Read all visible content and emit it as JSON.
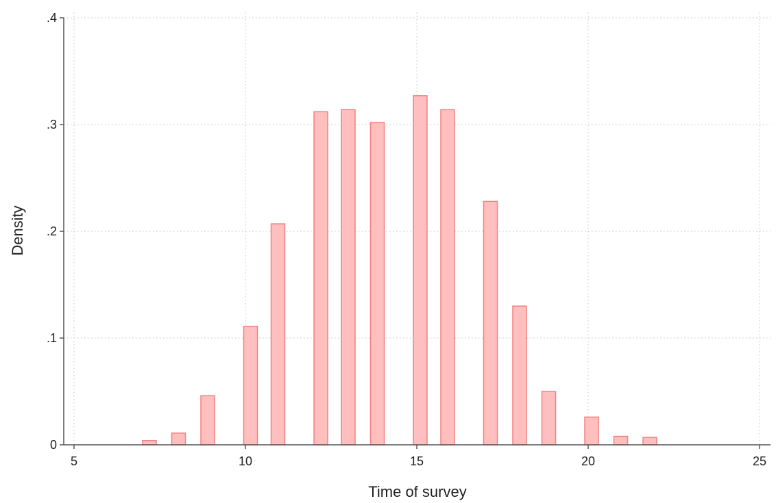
{
  "chart_data": {
    "type": "bar",
    "title": "",
    "xlabel": "Time of survey",
    "ylabel": "Density",
    "xlim": [
      5,
      25
    ],
    "ylim": [
      0,
      0.4
    ],
    "x_ticks": [
      {
        "value": 5,
        "label": "5"
      },
      {
        "value": 10,
        "label": "10"
      },
      {
        "value": 15,
        "label": "15"
      },
      {
        "value": 20,
        "label": "20"
      },
      {
        "value": 25,
        "label": "25"
      }
    ],
    "y_ticks": [
      {
        "value": 0,
        "label": "0"
      },
      {
        "value": 0.1,
        "label": ".1"
      },
      {
        "value": 0.2,
        "label": ".2"
      },
      {
        "value": 0.3,
        "label": ".3"
      },
      {
        "value": 0.4,
        "label": ".4"
      }
    ],
    "grid": true,
    "bar_width": 0.4,
    "bars": [
      {
        "x": 7.2,
        "density": 0.004
      },
      {
        "x": 8.05,
        "density": 0.011
      },
      {
        "x": 8.9,
        "density": 0.046
      },
      {
        "x": 10.15,
        "density": 0.111
      },
      {
        "x": 10.95,
        "density": 0.207
      },
      {
        "x": 12.2,
        "density": 0.312
      },
      {
        "x": 13.0,
        "density": 0.314
      },
      {
        "x": 13.85,
        "density": 0.302
      },
      {
        "x": 15.1,
        "density": 0.327
      },
      {
        "x": 15.9,
        "density": 0.314
      },
      {
        "x": 17.15,
        "density": 0.228
      },
      {
        "x": 18.0,
        "density": 0.13
      },
      {
        "x": 18.85,
        "density": 0.05
      },
      {
        "x": 20.1,
        "density": 0.026
      },
      {
        "x": 20.95,
        "density": 0.008
      },
      {
        "x": 21.8,
        "density": 0.007
      }
    ],
    "colors": {
      "bar_fill": "#ffbfbf",
      "bar_stroke": "#f08080",
      "axis": "#555555",
      "grid": "#cccccc",
      "text": "#222222"
    }
  }
}
